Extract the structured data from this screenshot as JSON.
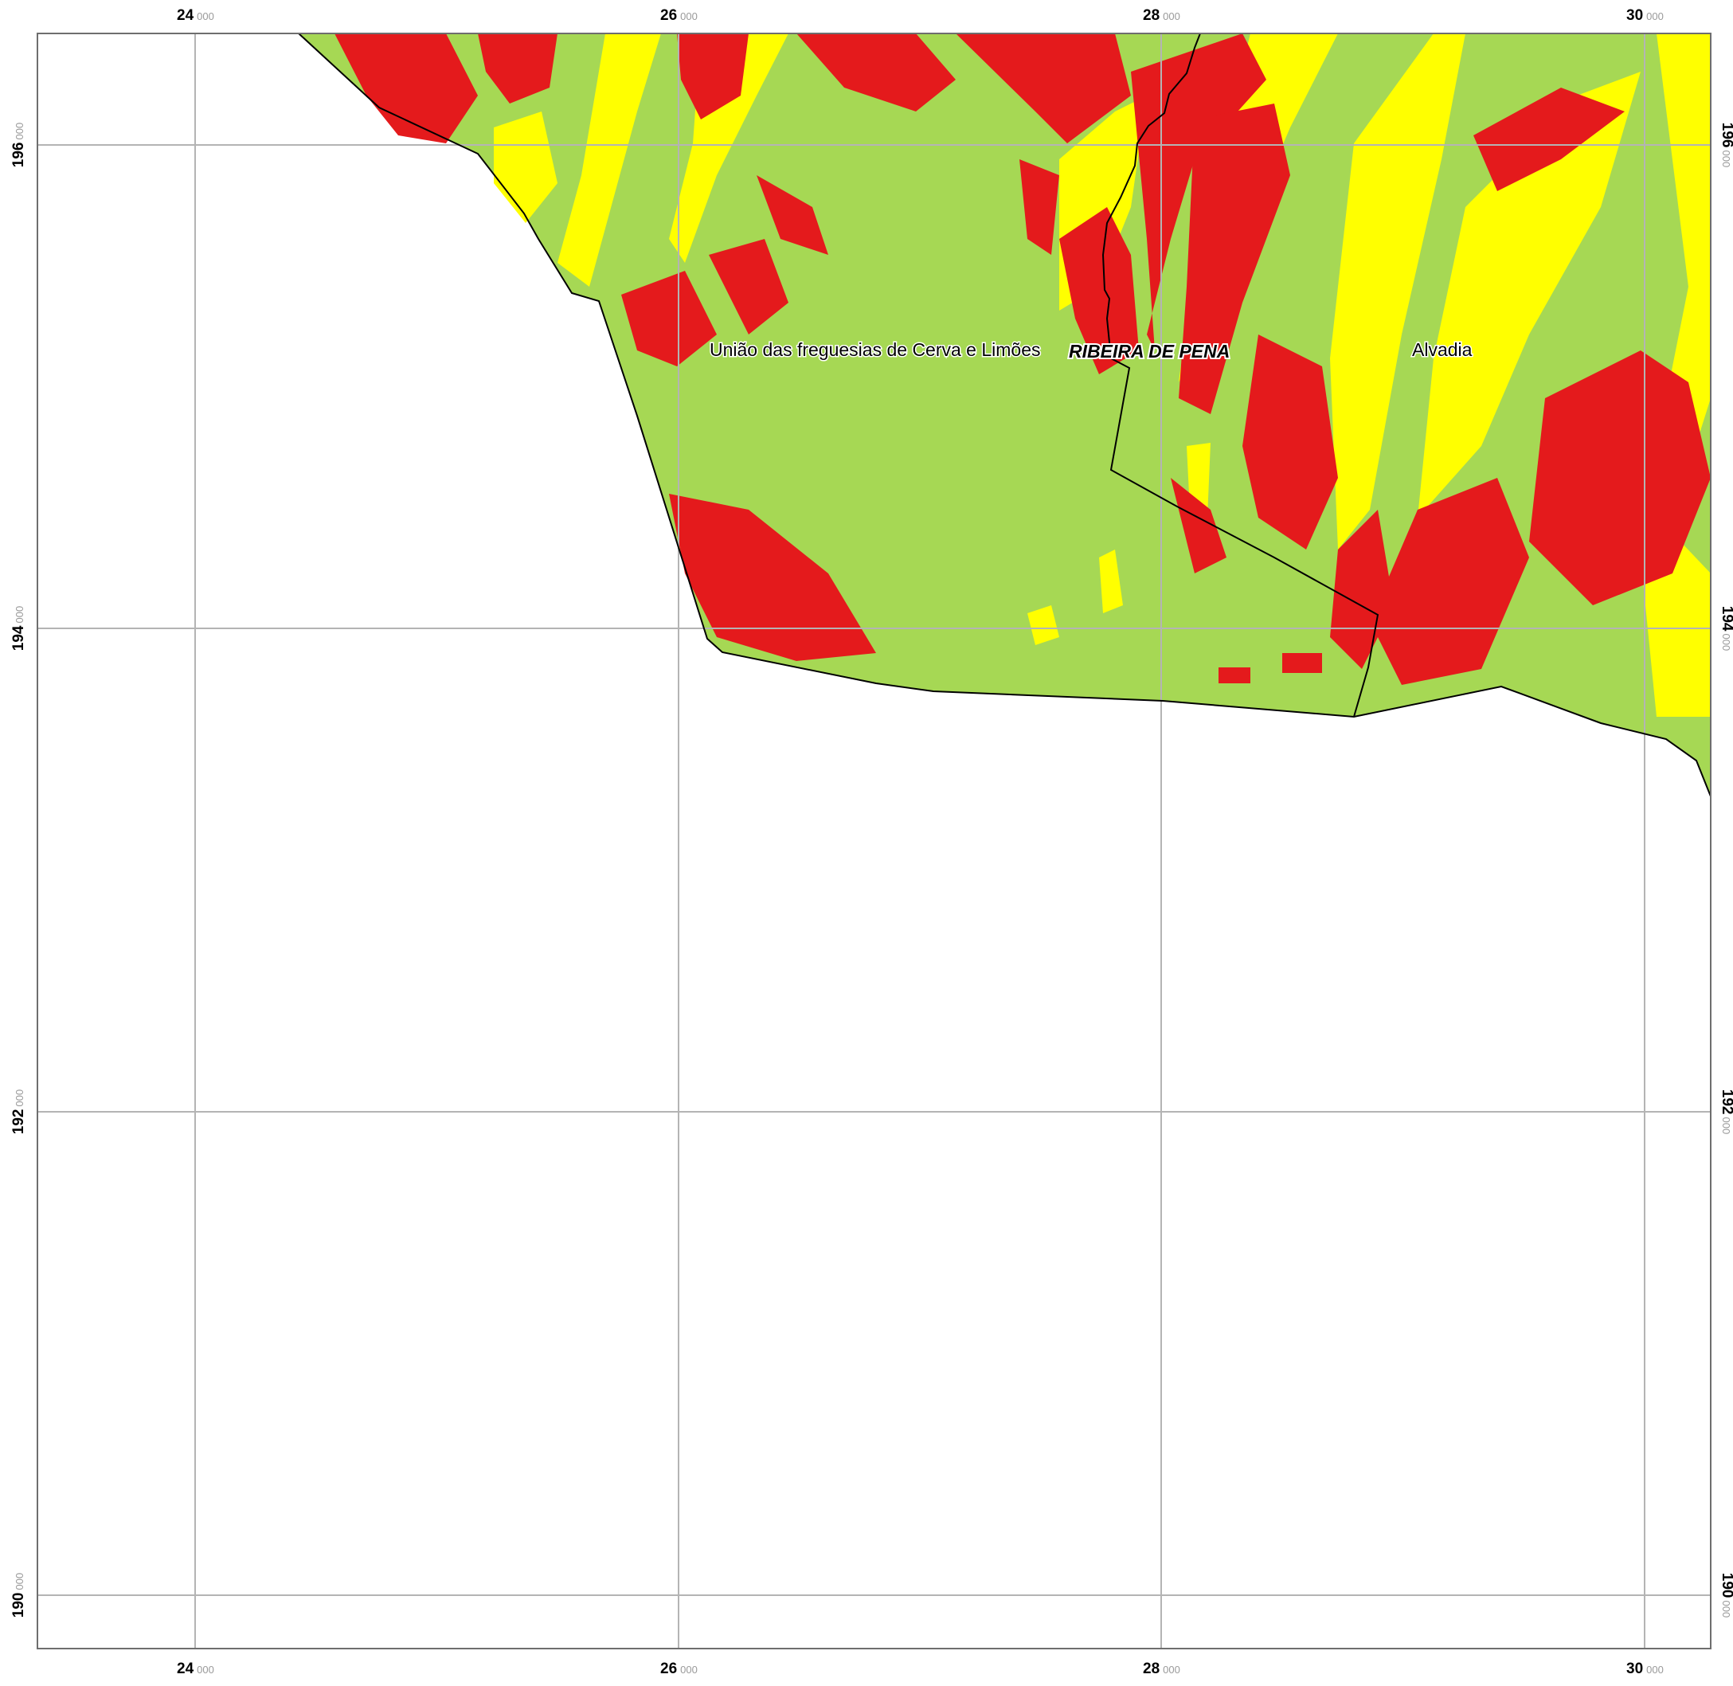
{
  "map": {
    "colors": {
      "class_green": "#a6d854",
      "class_yellow": "#ffff00",
      "class_red": "#e41a1c",
      "grid": "#b4b4b4",
      "frame": "#6e6e6e",
      "boundary": "#000000"
    },
    "x_ticks": [
      {
        "major": "24",
        "minor": "000"
      },
      {
        "major": "26",
        "minor": "000"
      },
      {
        "major": "28",
        "minor": "000"
      },
      {
        "major": "30",
        "minor": "000"
      }
    ],
    "y_ticks": [
      {
        "major": "196",
        "minor": "000"
      },
      {
        "major": "194",
        "minor": "000"
      },
      {
        "major": "192",
        "minor": "000"
      },
      {
        "major": "190",
        "minor": "000"
      }
    ],
    "labels": {
      "cerva": "União das freguesias de Cerva e Limões",
      "municipality": "RIBEIRA DE PENA",
      "alvadia": "Alvadia"
    }
  }
}
